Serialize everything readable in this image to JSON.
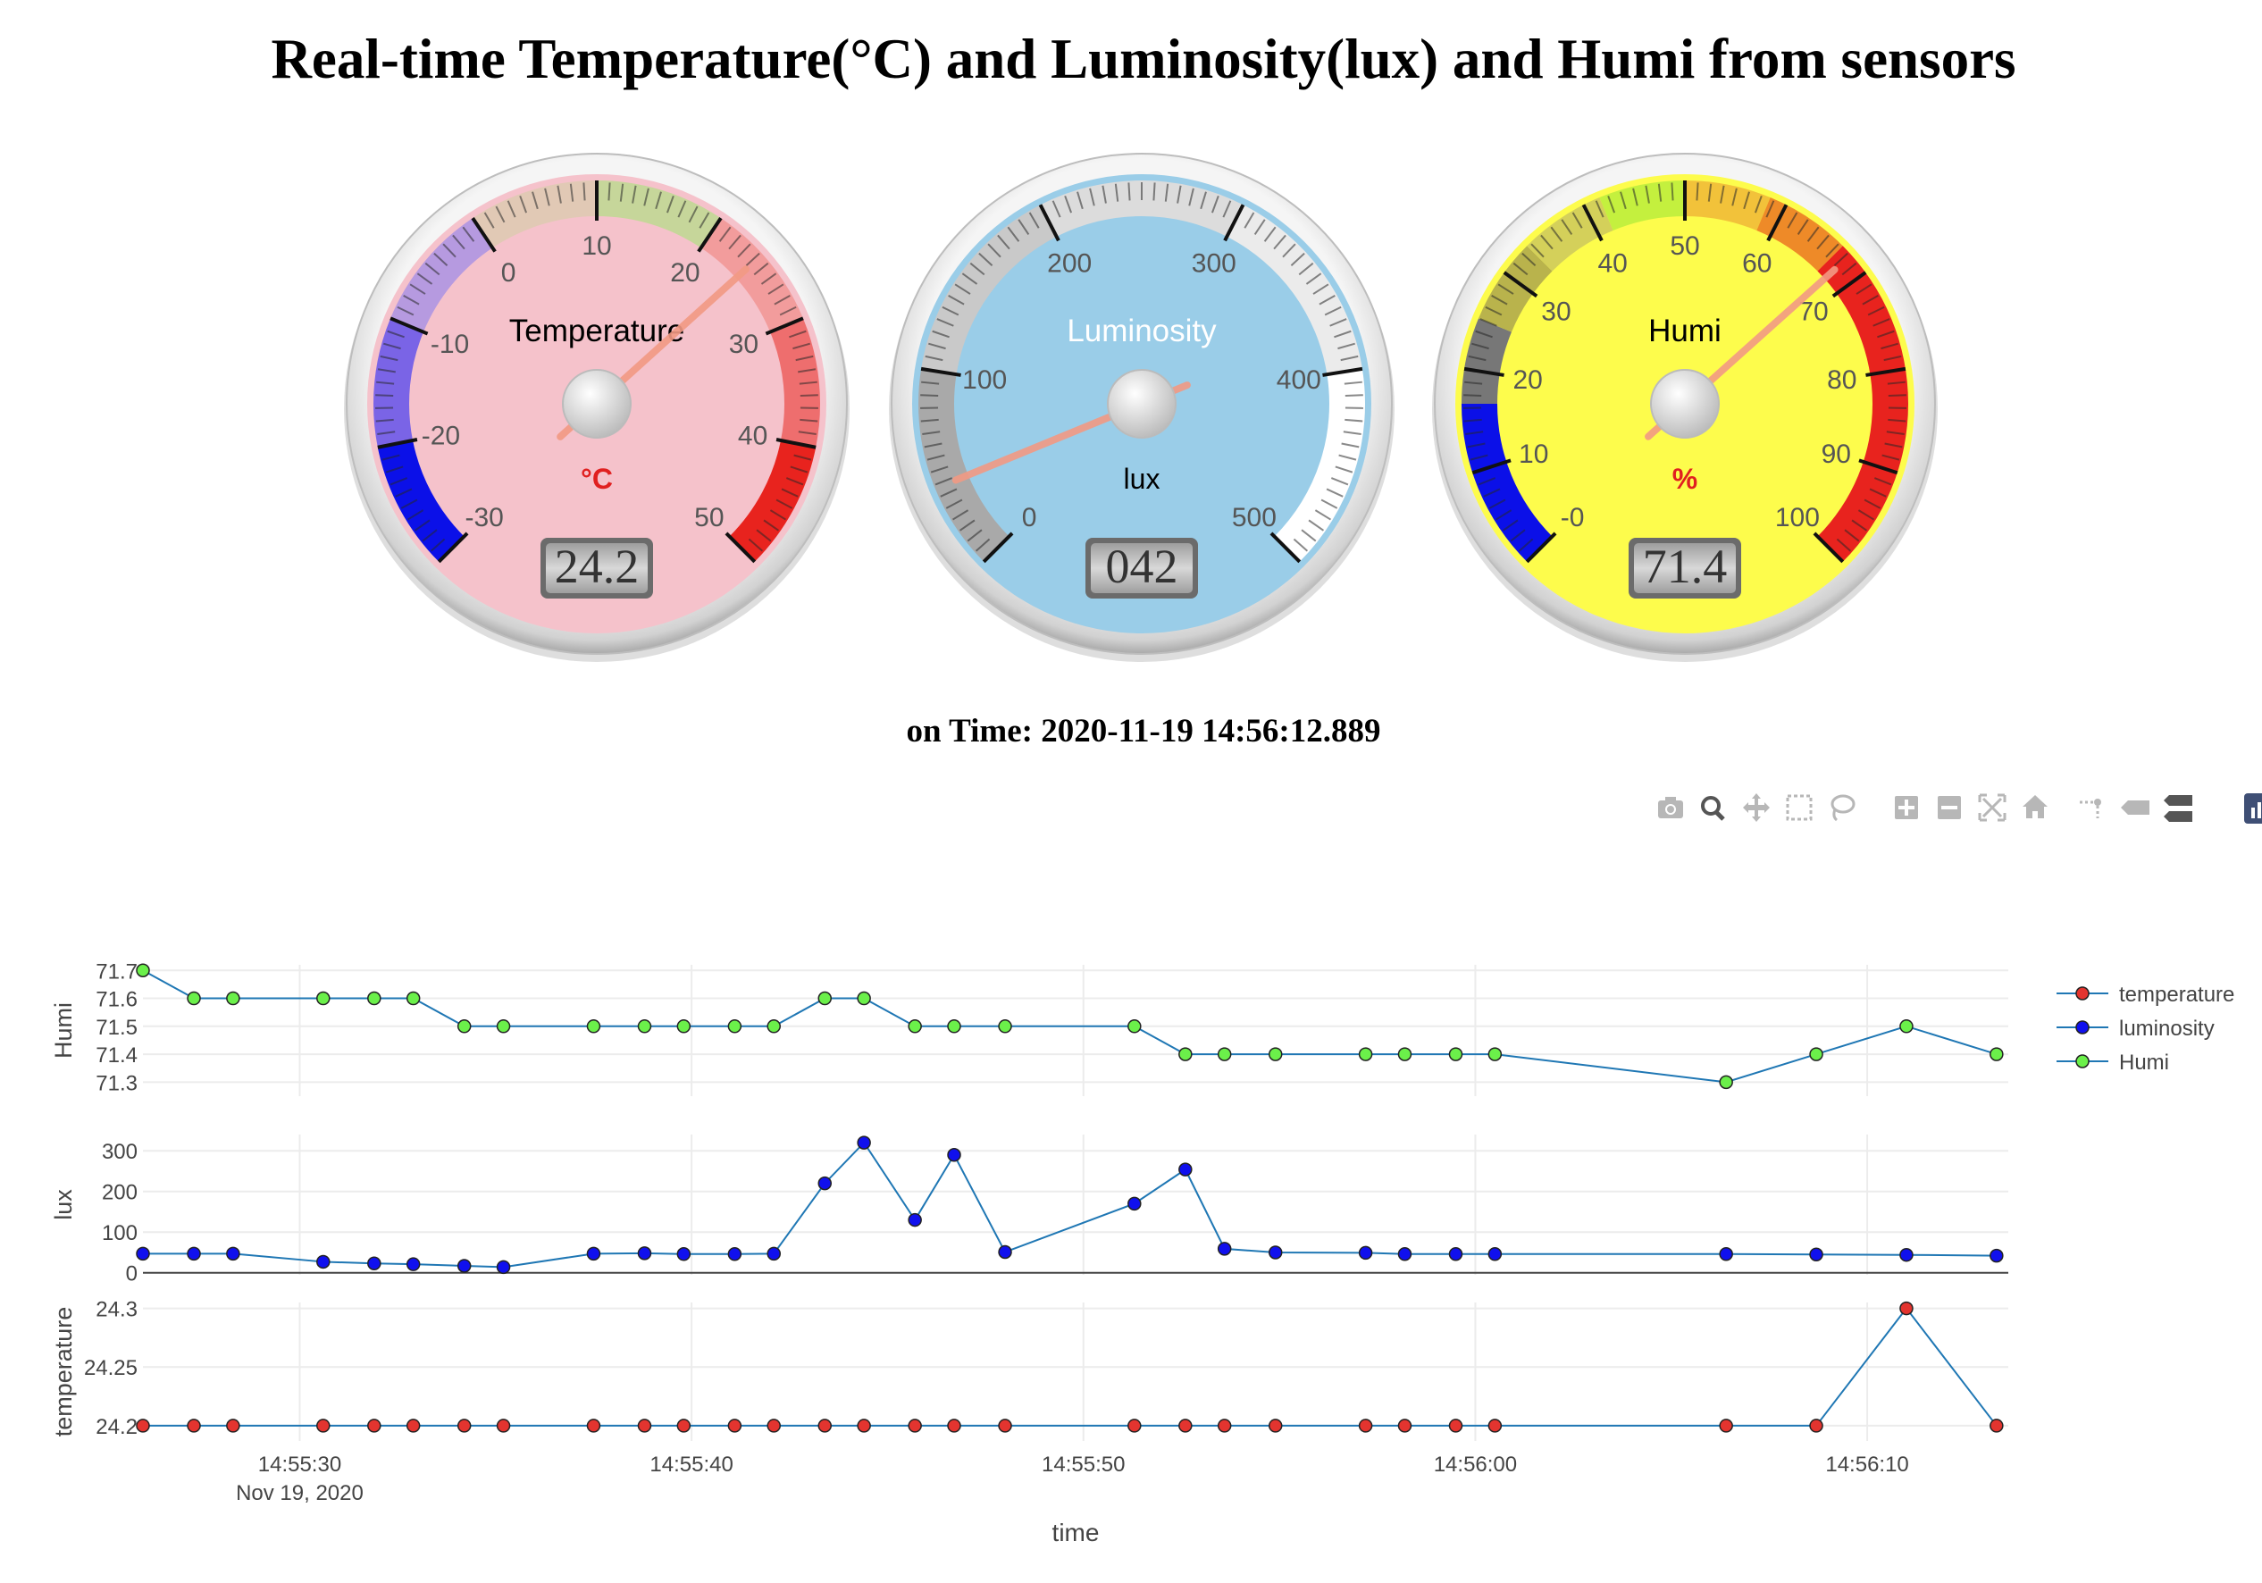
{
  "page": {
    "title": "Real-time Temperature(°C) and Luminosity(lux) and Humi from sensors",
    "timestamp": "on Time: 2020-11-19 14:56:12.889"
  },
  "gauges": [
    {
      "title": "Temperature",
      "unit": "°C",
      "display": "24.2",
      "value": 24.2,
      "min": -30,
      "max": 50,
      "ticks": [
        "-30",
        "-20",
        "-10",
        "0",
        "10",
        "20",
        "30",
        "40",
        "50"
      ],
      "face": "#f5c2cb",
      "unit_color": "#e02020",
      "title_color": "#000000",
      "bands": [
        {
          "from": -30,
          "to": -20,
          "color": "#0b10e8"
        },
        {
          "from": -20,
          "to": -10,
          "color": "#7a64e6"
        },
        {
          "from": -10,
          "to": 0,
          "color": "#b69ae0"
        },
        {
          "from": 0,
          "to": 10,
          "color": "#e1c9b5"
        },
        {
          "from": 10,
          "to": 20,
          "color": "#c6d69a"
        },
        {
          "from": 20,
          "to": 30,
          "color": "#f29c9c"
        },
        {
          "from": 30,
          "to": 40,
          "color": "#ee6e6e"
        },
        {
          "from": 40,
          "to": 50,
          "color": "#e8231e"
        }
      ]
    },
    {
      "title": "Luminosity",
      "unit": "lux",
      "display": "042",
      "value": 42,
      "min": 0,
      "max": 500,
      "ticks": [
        "0",
        "100",
        "200",
        "300",
        "400",
        "500"
      ],
      "face": "#9acde8",
      "unit_color": "#000000",
      "title_color": "#ffffff",
      "bands": [
        {
          "from": 0,
          "to": 100,
          "color": "#a9a9a9"
        },
        {
          "from": 100,
          "to": 200,
          "color": "#c9c9c9"
        },
        {
          "from": 200,
          "to": 300,
          "color": "#dcdcdc"
        },
        {
          "from": 300,
          "to": 400,
          "color": "#ebebeb"
        },
        {
          "from": 400,
          "to": 500,
          "color": "#ffffff"
        }
      ]
    },
    {
      "title": "Humi",
      "unit": "%",
      "display": "71.4",
      "value": 71.4,
      "min": -10,
      "max": 110,
      "ticks": [
        "-0",
        "10",
        "20",
        "30",
        "40",
        "50",
        "60",
        "70",
        "80",
        "90",
        "100"
      ],
      "face": "#fdfc4c",
      "unit_color": "#e02020",
      "title_color": "#000000",
      "bands": [
        {
          "from": -10,
          "to": 10,
          "color": "#0b10e8"
        },
        {
          "from": 10,
          "to": 20,
          "color": "#777777"
        },
        {
          "from": 20,
          "to": 30,
          "color": "#b9b34c"
        },
        {
          "from": 30,
          "to": 40,
          "color": "#d4d05a"
        },
        {
          "from": 40,
          "to": 50,
          "color": "#c4f03e"
        },
        {
          "from": 50,
          "to": 60,
          "color": "#f2c23a"
        },
        {
          "from": 60,
          "to": 70,
          "color": "#ee8a28"
        },
        {
          "from": 70,
          "to": 110,
          "color": "#e8231e"
        }
      ]
    }
  ],
  "modebar": {
    "icons": [
      "camera-icon",
      "zoom-icon",
      "pan-icon",
      "box-select-icon",
      "lasso-select-icon",
      "zoom-in-icon",
      "zoom-out-icon",
      "autoscale-icon",
      "reset-axes-icon",
      "spike-lines-icon",
      "hover-closest-icon",
      "hover-compare-icon",
      "plotly-logo-icon"
    ]
  },
  "chart_data": {
    "type": "line",
    "x_label": "time",
    "date_label": "Nov 19, 2020",
    "x_ticks": [
      "14:55:30",
      "14:55:40",
      "14:55:50",
      "14:56:00",
      "14:56:10"
    ],
    "x_range": [
      "14:55:26",
      "14:56:13.6"
    ],
    "x": [
      "14:55:26.0",
      "14:55:27.3",
      "14:55:28.3",
      "14:55:30.6",
      "14:55:31.9",
      "14:55:32.9",
      "14:55:34.2",
      "14:55:35.2",
      "14:55:37.5",
      "14:55:38.8",
      "14:55:39.8",
      "14:55:41.1",
      "14:55:42.1",
      "14:55:43.4",
      "14:55:44.4",
      "14:55:45.7",
      "14:55:46.7",
      "14:55:48.0",
      "14:55:51.3",
      "14:55:52.6",
      "14:55:53.6",
      "14:55:54.9",
      "14:55:57.2",
      "14:55:58.2",
      "14:55:59.5",
      "14:56:00.5",
      "14:56:06.4",
      "14:56:08.7",
      "14:56:11.0",
      "14:56:13.3"
    ],
    "subplots": [
      {
        "ylabel": "Humi",
        "yrange": [
          71.25,
          71.72
        ],
        "yticks": [
          "71.3",
          "71.4",
          "71.5",
          "71.6",
          "71.7"
        ],
        "series": "Humi"
      },
      {
        "ylabel": "lux",
        "yrange": [
          -5,
          340
        ],
        "yticks": [
          "0",
          "100",
          "200",
          "300"
        ],
        "series": "luminosity"
      },
      {
        "ylabel": "temperature",
        "yrange": [
          24.187,
          24.305
        ],
        "yticks": [
          "24.2",
          "24.25",
          "24.3"
        ],
        "series": "temperature"
      }
    ],
    "series": [
      {
        "name": "temperature",
        "marker_color": "#e3342f",
        "line_color": "#1f77b4",
        "values": [
          24.2,
          24.2,
          24.2,
          24.2,
          24.2,
          24.2,
          24.2,
          24.2,
          24.2,
          24.2,
          24.2,
          24.2,
          24.2,
          24.2,
          24.2,
          24.2,
          24.2,
          24.2,
          24.2,
          24.2,
          24.2,
          24.2,
          24.2,
          24.2,
          24.2,
          24.2,
          24.2,
          24.2,
          24.3,
          24.2
        ]
      },
      {
        "name": "luminosity",
        "marker_color": "#1010ee",
        "line_color": "#1f77b4",
        "values": [
          47,
          47,
          47,
          27,
          23,
          21,
          17,
          14,
          47,
          48,
          46,
          46,
          47,
          220,
          320,
          130,
          290,
          51,
          170,
          254,
          59,
          50,
          49,
          46,
          46,
          46,
          46,
          45,
          44,
          42
        ]
      },
      {
        "name": "Humi",
        "marker_color": "#6bf04a",
        "line_color": "#1f77b4",
        "values": [
          71.7,
          71.6,
          71.6,
          71.6,
          71.6,
          71.6,
          71.5,
          71.5,
          71.5,
          71.5,
          71.5,
          71.5,
          71.5,
          71.6,
          71.6,
          71.5,
          71.5,
          71.5,
          71.5,
          71.4,
          71.4,
          71.4,
          71.4,
          71.4,
          71.4,
          71.4,
          71.3,
          71.4,
          71.5,
          71.4
        ]
      }
    ],
    "legend_placement": "top-right",
    "grid": true
  }
}
